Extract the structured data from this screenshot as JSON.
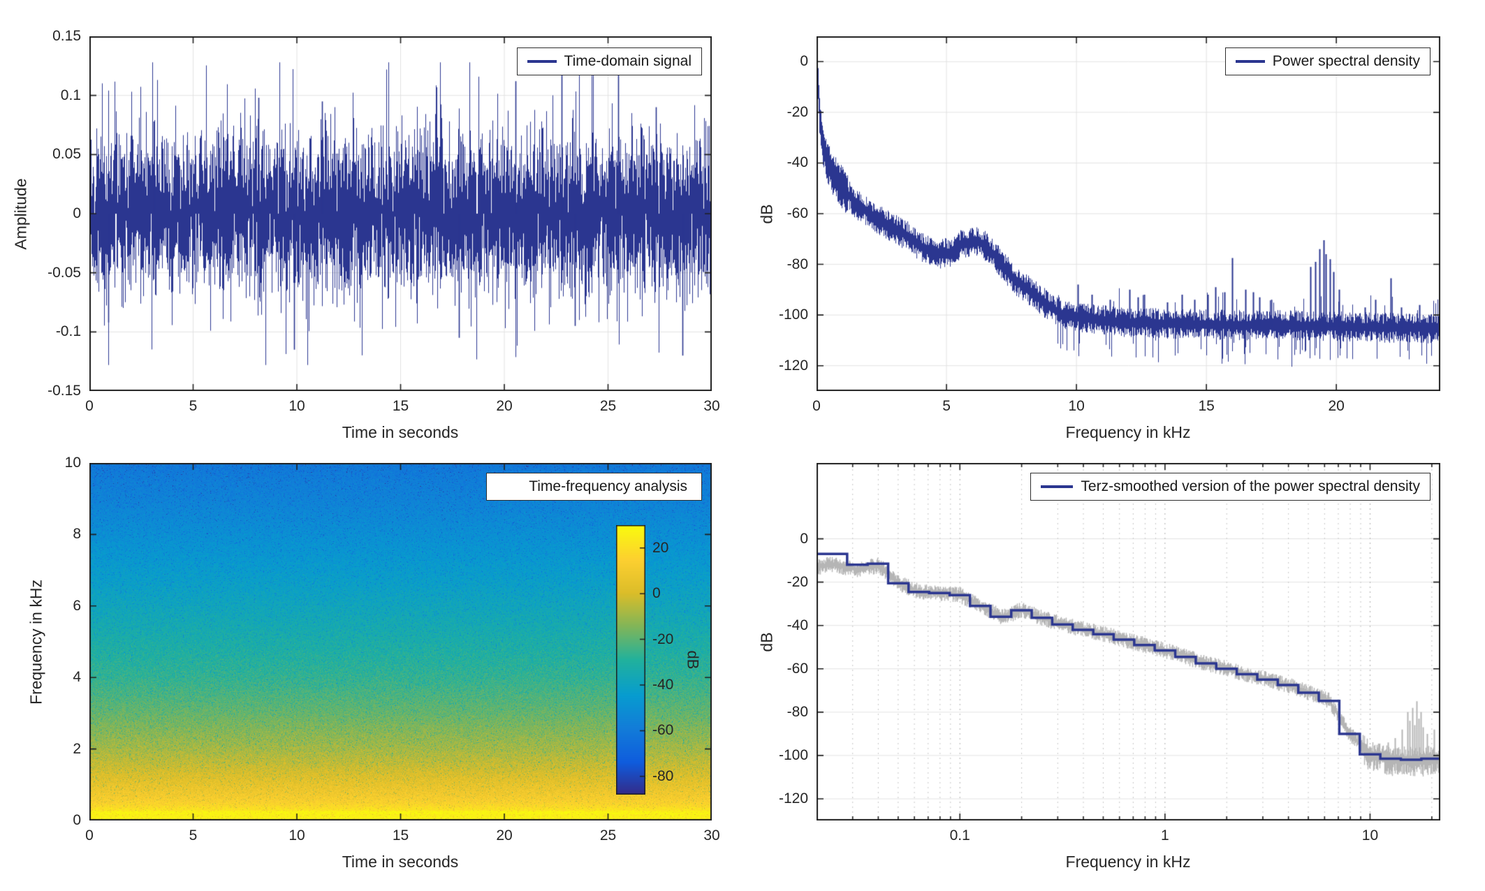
{
  "colors": {
    "line": "#2b3690",
    "raw": "#b5b5b5",
    "axes": "#1f1f1f",
    "grid": "#e2e2e2",
    "minor_grid": "#c6c6c6",
    "major_log_grid": "#adadad",
    "background": "#ffffff",
    "text": "#262626"
  },
  "chart_data": [
    {
      "type": "line",
      "title": "Time-domain signal",
      "xlabel": "Time in seconds",
      "ylabel": "Amplitude",
      "xlim": [
        0,
        30
      ],
      "ylim": [
        -0.15,
        0.15
      ],
      "xticks": [
        0,
        5,
        10,
        15,
        20,
        25,
        30
      ],
      "yticks": [
        0.15,
        0.1,
        0.05,
        0,
        -0.05,
        -0.1,
        -0.15
      ],
      "grid": true,
      "legend_position": "top-right",
      "line_color": "#2b3690",
      "signal": {
        "seed": 42,
        "std": 0.03,
        "tail_prob": 0.06,
        "tail_gain": 1.9,
        "clip": 0.128,
        "extremes": [
          [
            0.9,
            -0.092
          ],
          [
            3.1,
            0.078
          ],
          [
            8.15,
            0.098
          ],
          [
            9.85,
            -0.115
          ],
          [
            11.2,
            0.095
          ],
          [
            17.8,
            -0.105
          ],
          [
            20.55,
            0.112
          ],
          [
            22.75,
            0.12
          ],
          [
            23.4,
            -0.095
          ],
          [
            25.5,
            0.125
          ],
          [
            27.3,
            0.09
          ],
          [
            28.6,
            -0.12
          ]
        ]
      }
    },
    {
      "type": "line",
      "title": "Power spectral density",
      "xlabel": "Frequency in kHz",
      "ylabel": "dB",
      "xlim": [
        0,
        24
      ],
      "ylim": [
        -130,
        10
      ],
      "xticks": [
        0,
        5,
        10,
        15,
        20
      ],
      "yticks": [
        0,
        -20,
        -40,
        -60,
        -80,
        -100,
        -120
      ],
      "grid": true,
      "legend_position": "top-right",
      "line_color": "#2b3690",
      "envelope": [
        [
          0,
          3
        ],
        [
          0.05,
          -8
        ],
        [
          0.1,
          -20
        ],
        [
          0.15,
          -26
        ],
        [
          0.25,
          -33
        ],
        [
          0.4,
          -39
        ],
        [
          0.6,
          -44
        ],
        [
          0.8,
          -47
        ],
        [
          1,
          -50
        ],
        [
          1.5,
          -56
        ],
        [
          2,
          -60
        ],
        [
          2.5,
          -63
        ],
        [
          3,
          -66
        ],
        [
          3.5,
          -69
        ],
        [
          4,
          -73
        ],
        [
          4.4,
          -75
        ],
        [
          4.8,
          -76
        ],
        [
          5.2,
          -75
        ],
        [
          5.6,
          -72
        ],
        [
          6,
          -70.5
        ],
        [
          6.4,
          -72
        ],
        [
          6.8,
          -76
        ],
        [
          7.2,
          -81
        ],
        [
          7.6,
          -86
        ],
        [
          8,
          -89
        ],
        [
          8.5,
          -93
        ],
        [
          9,
          -97
        ],
        [
          9.5,
          -100
        ],
        [
          10,
          -101
        ],
        [
          11,
          -102
        ],
        [
          12,
          -103
        ],
        [
          14,
          -103.5
        ],
        [
          16,
          -104
        ],
        [
          18,
          -104
        ],
        [
          20,
          -104.5
        ],
        [
          22,
          -105
        ],
        [
          24,
          -105
        ]
      ],
      "jitter_db": 4.5,
      "spikes": [
        [
          10.05,
          -88
        ],
        [
          10.6,
          -92
        ],
        [
          11.3,
          -94
        ],
        [
          12.05,
          -90
        ],
        [
          12.35,
          -93
        ],
        [
          12.6,
          -92
        ],
        [
          13.5,
          -95
        ],
        [
          14.05,
          -92
        ],
        [
          14.55,
          -94
        ],
        [
          15.05,
          -92
        ],
        [
          15.35,
          -89
        ],
        [
          15.7,
          -91
        ],
        [
          16.0,
          -77.5
        ],
        [
          16.5,
          -90
        ],
        [
          16.8,
          -91
        ],
        [
          17.05,
          -93
        ],
        [
          17.5,
          -94
        ],
        [
          19.0,
          -81
        ],
        [
          19.2,
          -79
        ],
        [
          19.35,
          -74
        ],
        [
          19.5,
          -70.5
        ],
        [
          19.6,
          -76
        ],
        [
          19.75,
          -78
        ],
        [
          19.9,
          -83
        ],
        [
          20.1,
          -90
        ],
        [
          21.1,
          -97
        ],
        [
          21.5,
          -94
        ],
        [
          22.1,
          -85.5
        ],
        [
          22.5,
          -97
        ],
        [
          23.2,
          -96
        ]
      ],
      "seed": 7
    },
    {
      "type": "heatmap",
      "title": "Time-frequency analysis",
      "xlabel": "Time in seconds",
      "ylabel": "Frequency in kHz",
      "xlim": [
        0,
        30
      ],
      "ylim": [
        0,
        10
      ],
      "xticks": [
        0,
        5,
        10,
        15,
        20,
        25,
        30
      ],
      "yticks": [
        0,
        2,
        4,
        6,
        8,
        10
      ],
      "colormap": "parula",
      "clim": [
        -88,
        30
      ],
      "colorbar": {
        "label": "dB",
        "ticks": [
          20,
          0,
          -20,
          -40,
          -60,
          -80
        ]
      },
      "freq_profile_db": [
        [
          0,
          26
        ],
        [
          0.12,
          27.5
        ],
        [
          0.22,
          24
        ],
        [
          0.35,
          20
        ],
        [
          0.5,
          15
        ],
        [
          0.75,
          10
        ],
        [
          1,
          6
        ],
        [
          1.5,
          -2
        ],
        [
          2,
          -8
        ],
        [
          2.5,
          -13
        ],
        [
          3,
          -18
        ],
        [
          3.5,
          -22
        ],
        [
          4,
          -26
        ],
        [
          4.5,
          -29
        ],
        [
          5,
          -32
        ],
        [
          5.5,
          -35
        ],
        [
          6,
          -38
        ],
        [
          6.5,
          -41
        ],
        [
          7,
          -44
        ],
        [
          7.5,
          -47
        ],
        [
          8,
          -50
        ],
        [
          8.5,
          -53
        ],
        [
          9,
          -56
        ],
        [
          9.5,
          -58
        ],
        [
          10,
          -61
        ]
      ],
      "noise_db": 8,
      "speckle_prob": 0.05,
      "seed": 99
    },
    {
      "type": "line",
      "title": "Terz-smoothed version of the power spectral density",
      "xlabel": "Frequency in kHz",
      "ylabel": "dB",
      "xscale": "log",
      "xlim": [
        0.02,
        22
      ],
      "ylim": [
        -130,
        35
      ],
      "xticks": [
        0.1,
        1,
        10
      ],
      "yticks": [
        0,
        -20,
        -40,
        -60,
        -80,
        -100,
        -120
      ],
      "grid": true,
      "minor_grid": true,
      "legend_position": "top-right",
      "line_color": "#2b3690",
      "raw_color": "#b5b5b5",
      "third_octave_bands": [
        [
          0.02,
          0.0282,
          -7
        ],
        [
          0.0282,
          0.0355,
          -12
        ],
        [
          0.0355,
          0.0447,
          -11.5
        ],
        [
          0.0447,
          0.0562,
          -20.5
        ],
        [
          0.0562,
          0.0708,
          -24.5
        ],
        [
          0.0708,
          0.0891,
          -25
        ],
        [
          0.0891,
          0.112,
          -26
        ],
        [
          0.112,
          0.141,
          -31
        ],
        [
          0.141,
          0.178,
          -36
        ],
        [
          0.178,
          0.224,
          -33
        ],
        [
          0.224,
          0.282,
          -36.5
        ],
        [
          0.282,
          0.355,
          -39.5
        ],
        [
          0.355,
          0.447,
          -42
        ],
        [
          0.447,
          0.562,
          -44
        ],
        [
          0.562,
          0.708,
          -46.5
        ],
        [
          0.708,
          0.891,
          -49
        ],
        [
          0.891,
          1.122,
          -51.5
        ],
        [
          1.122,
          1.413,
          -54.5
        ],
        [
          1.413,
          1.778,
          -57.5
        ],
        [
          1.778,
          2.239,
          -60
        ],
        [
          2.239,
          2.818,
          -62.5
        ],
        [
          2.818,
          3.548,
          -65
        ],
        [
          3.548,
          4.467,
          -67.5
        ],
        [
          4.467,
          5.623,
          -71
        ],
        [
          5.623,
          7.079,
          -74.8
        ],
        [
          7.079,
          8.913,
          -90
        ],
        [
          8.913,
          11.22,
          -99.5
        ],
        [
          11.22,
          14.125,
          -101.5
        ],
        [
          14.125,
          17.783,
          -102
        ],
        [
          17.783,
          22,
          -101.5
        ]
      ],
      "raw_jitter_db": 3,
      "raw_start_dip": [
        [
          0.02,
          -6
        ],
        [
          0.026,
          -4
        ],
        [
          0.032,
          -2
        ],
        [
          0.045,
          0
        ]
      ],
      "raw_spikes": [
        [
          12.2,
          -94
        ],
        [
          13.2,
          -92
        ],
        [
          14.3,
          -88
        ],
        [
          15.2,
          -80
        ],
        [
          15.6,
          -84
        ],
        [
          16.1,
          -78
        ],
        [
          16.5,
          -86
        ],
        [
          16.9,
          -75
        ],
        [
          17.3,
          -83
        ],
        [
          17.6,
          -80
        ],
        [
          18.1,
          -87
        ],
        [
          18.9,
          -90
        ],
        [
          20.5,
          -88
        ]
      ],
      "seed": 123
    }
  ]
}
